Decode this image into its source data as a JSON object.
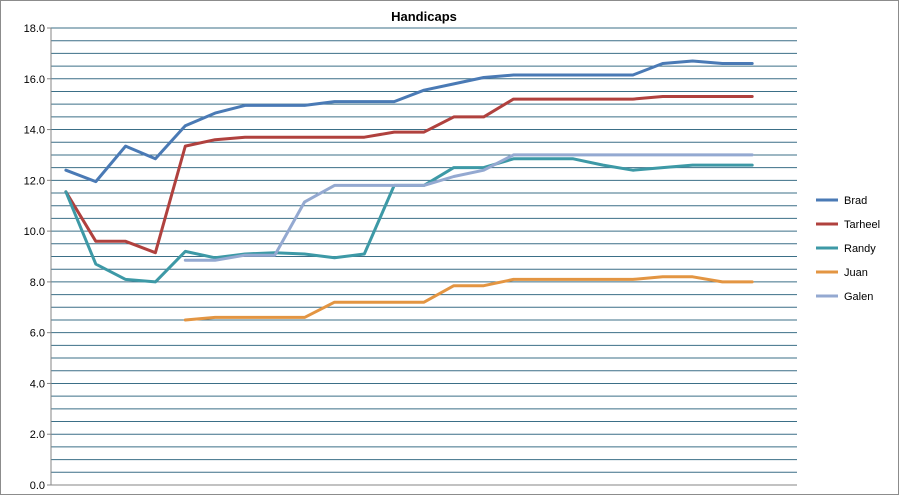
{
  "chart_data": {
    "type": "line",
    "title": "Handicaps",
    "xlabel": "",
    "ylabel": "",
    "ylim": [
      0,
      18
    ],
    "y_ticks": [
      "0.0",
      "2.0",
      "4.0",
      "6.0",
      "8.0",
      "10.0",
      "12.0",
      "14.0",
      "16.0",
      "18.0"
    ],
    "grid": "horizontal gridlines every 0.5",
    "legend_position": "right",
    "x": [
      1,
      2,
      3,
      4,
      5,
      6,
      7,
      8,
      9,
      10,
      11,
      12,
      13,
      14,
      15,
      16,
      17,
      18,
      19,
      20,
      21,
      22,
      23,
      24,
      25
    ],
    "series": [
      {
        "name": "Brad",
        "color": "#4a7ab5",
        "values": [
          12.4,
          11.95,
          13.35,
          12.85,
          14.15,
          14.65,
          14.95,
          14.95,
          14.95,
          15.1,
          15.1,
          15.1,
          15.55,
          15.8,
          16.05,
          16.15,
          16.15,
          16.15,
          16.15,
          16.15,
          16.6,
          16.7,
          16.6,
          16.6,
          null
        ]
      },
      {
        "name": "Tarheel",
        "color": "#b0413e",
        "values": [
          11.55,
          9.6,
          9.6,
          9.15,
          13.35,
          13.6,
          13.7,
          13.7,
          13.7,
          13.7,
          13.7,
          13.9,
          13.9,
          14.5,
          14.5,
          15.2,
          15.2,
          15.2,
          15.2,
          15.2,
          15.3,
          15.3,
          15.3,
          15.3,
          null
        ]
      },
      {
        "name": "Randy",
        "color": "#3d99a6",
        "values": [
          11.55,
          8.7,
          8.1,
          8.0,
          9.2,
          8.95,
          9.1,
          9.15,
          9.1,
          8.95,
          9.1,
          11.8,
          11.8,
          12.5,
          12.5,
          12.85,
          12.85,
          12.85,
          12.6,
          12.4,
          12.5,
          12.6,
          12.6,
          12.6,
          null
        ]
      },
      {
        "name": "Juan",
        "color": "#e39542",
        "values": [
          null,
          null,
          null,
          null,
          6.5,
          6.6,
          6.6,
          6.6,
          6.6,
          7.2,
          7.2,
          7.2,
          7.2,
          7.85,
          7.85,
          8.1,
          8.1,
          8.1,
          8.1,
          8.1,
          8.2,
          8.2,
          8.0,
          8.0,
          null
        ]
      },
      {
        "name": "Galen",
        "color": "#94a9d1",
        "values": [
          null,
          null,
          null,
          null,
          8.85,
          8.85,
          9.05,
          9.05,
          11.15,
          11.8,
          11.8,
          11.8,
          11.8,
          12.15,
          12.4,
          13.0,
          13.0,
          13.0,
          13.0,
          13.0,
          13.0,
          13.0,
          13.0,
          13.0,
          null
        ]
      }
    ]
  }
}
